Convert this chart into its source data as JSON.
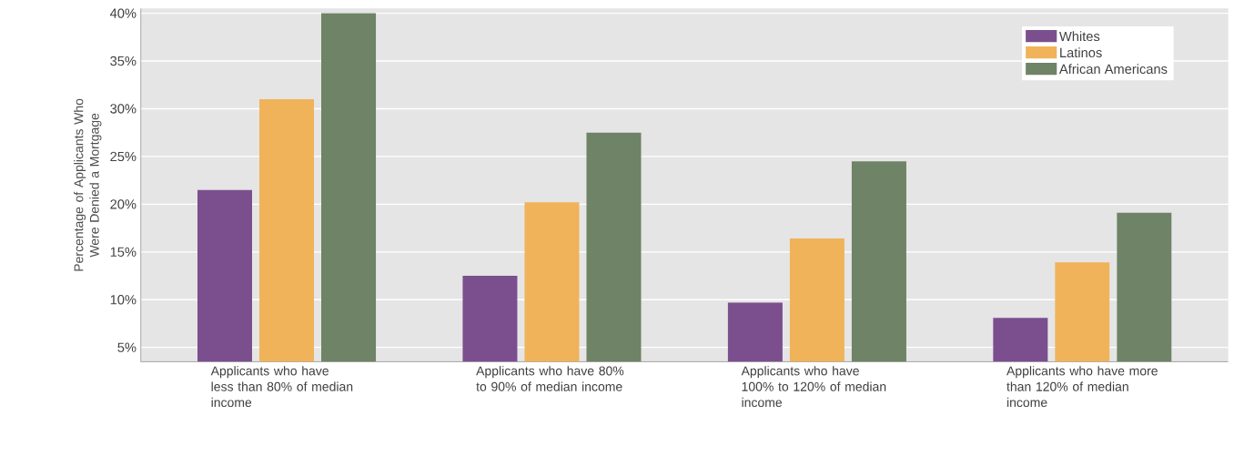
{
  "chart_data": {
    "type": "bar",
    "ylabel": "Percentage of Applicants Who Were Denied a Mortgage",
    "categories": [
      "Applicants who have less than 80% of median income",
      "Applicants who have 80% to 90% of median income",
      "Applicants who have 100% to 120% of median income",
      "Applicants who have more than 120% of median income"
    ],
    "series": [
      {
        "name": "Whites",
        "color": "#7b4f8e",
        "values": [
          21.5,
          12.5,
          9.7,
          8.1
        ]
      },
      {
        "name": "Latinos",
        "color": "#f0b35a",
        "values": [
          31,
          20.2,
          16.4,
          13.9
        ]
      },
      {
        "name": "African Americans",
        "color": "#6f8366",
        "values": [
          40,
          27.5,
          24.5,
          19.1
        ]
      }
    ],
    "ylim": [
      3.5,
      40.5
    ],
    "yticks": [
      {
        "value": 5,
        "label": "5%"
      },
      {
        "value": 10,
        "label": "10%"
      },
      {
        "value": 15,
        "label": "15%"
      },
      {
        "value": 20,
        "label": "20%"
      },
      {
        "value": 25,
        "label": "25%"
      },
      {
        "value": 30,
        "label": "30%"
      },
      {
        "value": 35,
        "label": "35%"
      },
      {
        "value": 40,
        "label": "40%"
      }
    ],
    "grid": "y",
    "legend": "top right"
  }
}
